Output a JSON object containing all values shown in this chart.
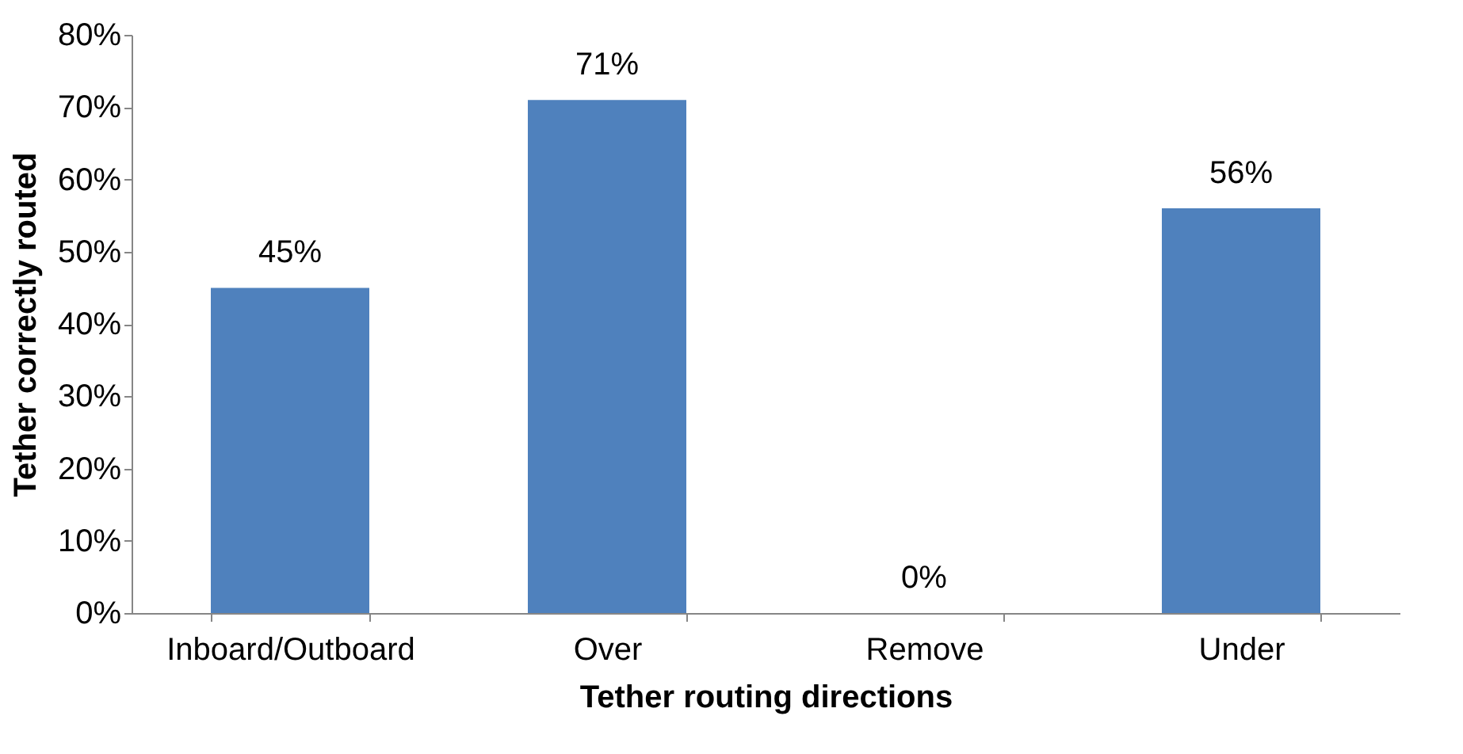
{
  "chart_data": {
    "type": "bar",
    "xlabel": "Tether routing directions",
    "ylabel": "Tether correctly routed",
    "categories": [
      "Inboard/Outboard",
      "Over",
      "Remove",
      "Under"
    ],
    "values": [
      45,
      71,
      0,
      56
    ],
    "color": "#4f81bd",
    "value_labels": [
      "45%",
      "71%",
      "0%",
      "56%"
    ],
    "ylim": [
      0,
      80
    ],
    "yticks": [
      {
        "value": 0,
        "label": "0%"
      },
      {
        "value": 10,
        "label": "10%"
      },
      {
        "value": 20,
        "label": "20%"
      },
      {
        "value": 30,
        "label": "30%"
      },
      {
        "value": 40,
        "label": "40%"
      },
      {
        "value": 50,
        "label": "50%"
      },
      {
        "value": 60,
        "label": "60%"
      },
      {
        "value": 70,
        "label": "70%"
      },
      {
        "value": 80,
        "label": "80%"
      }
    ],
    "grid": false
  }
}
